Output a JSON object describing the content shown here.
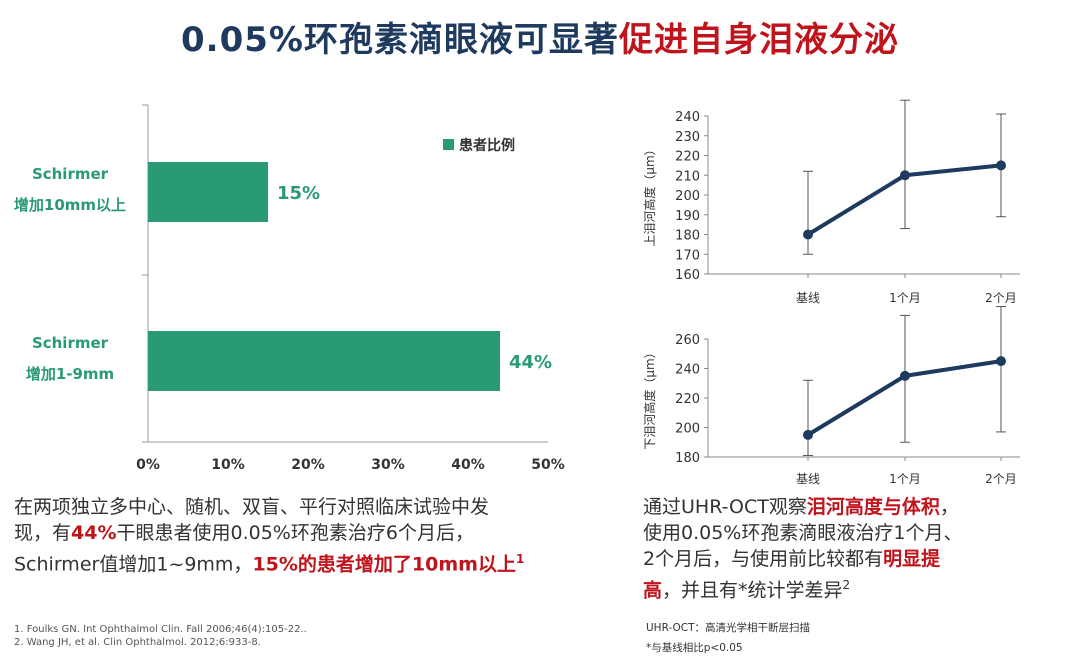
{
  "title": {
    "part1": "0.05%环孢素滴眼液可显著",
    "part2": "促进自身泪液分泌"
  },
  "colors": {
    "bar": "#2a9a76",
    "line": "#1e3a5f",
    "highlight": "#c0141c",
    "title": "#1e3a5f"
  },
  "chart_data": [
    {
      "type": "bar",
      "orientation": "horizontal",
      "categories": [
        [
          "Schirmer",
          "增加10mm以上"
        ],
        [
          "Schirmer",
          "增加1-9mm"
        ]
      ],
      "values": [
        15,
        44
      ],
      "value_labels": [
        "15%",
        "44%"
      ],
      "legend": [
        "患者比例"
      ],
      "legend_position": "top-right",
      "xlim": [
        0,
        50
      ],
      "xticks": [
        "0%",
        "10%",
        "20%",
        "30%",
        "40%",
        "50%"
      ]
    },
    {
      "type": "line",
      "categories": [
        "基线",
        "1个月",
        "2个月"
      ],
      "values": [
        180,
        210,
        215
      ],
      "error_low": [
        170,
        183,
        189
      ],
      "error_high": [
        212,
        248,
        241
      ],
      "ylabel": "上泪河高度（μm）",
      "ylim": [
        160,
        240
      ],
      "yticks": [
        160,
        170,
        180,
        190,
        200,
        210,
        220,
        230,
        240
      ]
    },
    {
      "type": "line",
      "categories": [
        "基线",
        "1个月",
        "2个月"
      ],
      "values": [
        195,
        235,
        245
      ],
      "error_low": [
        181,
        190,
        197
      ],
      "error_high": [
        232,
        276,
        282
      ],
      "ylabel": "下泪河高度（μm）",
      "ylim": [
        180,
        260
      ],
      "yticks": [
        180,
        200,
        220,
        240,
        260
      ]
    }
  ],
  "left_text": {
    "l1": "在两项独立多中心、随机、双盲、平行对照临床试验中发",
    "l2a": "现，有",
    "l2b": "44%",
    "l2c": "干眼患者使用0.05%环孢素治疗6个月后，",
    "l3a": "Schirmer值增加1~9mm，",
    "l3b": "15%的患者增加了10mm以上",
    "l3sup": "1"
  },
  "right_text": {
    "l1a": "通过UHR-OCT观察",
    "l1b": "泪河高度与体积",
    "l1c": "，",
    "l2": "使用0.05%环孢素滴眼液治疗1个月、",
    "l3a": "2个月后，与使用前比较都有",
    "l3b": "明显提",
    "l4a": "高",
    "l4b": "，并且有*统计学差异",
    "l4sup": "2"
  },
  "references": [
    "1.   Foulks GN. Int Ophthalmol Clin. Fall 2006;46(4):105-22..",
    "2.   Wang JH, et al. Clin Ophthalmol. 2012;6:933-8."
  ],
  "notes": [
    "UHR-OCT：高清光学相干断层扫描",
    "*与基线相比p<0.05"
  ]
}
